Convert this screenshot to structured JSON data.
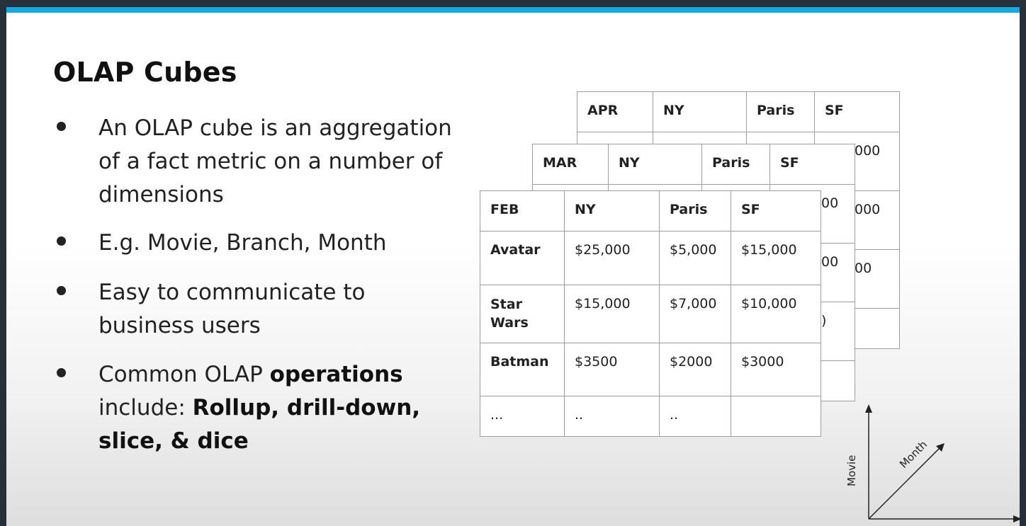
{
  "title": "OLAP Cubes",
  "bullets": [
    {
      "text_lines": [
        "An OLAP cube is an aggregation",
        "of a fact metric on a number of",
        "dimensions"
      ]
    },
    {
      "text_lines": [
        "E.g. Movie, Branch, Month"
      ]
    },
    {
      "text_lines": [
        "Easy to communicate to",
        "business users"
      ]
    },
    {
      "line1_plain": "Common OLAP ",
      "line1_bold": "operations",
      "line2_plain": "include: ",
      "line2_bold": "Rollup, drill-down,",
      "line3_bold": "slice, & dice"
    }
  ],
  "tables": {
    "apr": {
      "header": [
        "APR",
        "NY",
        "Paris",
        "SF"
      ],
      "visible_cells": [
        "000",
        "000",
        "00"
      ]
    },
    "mar": {
      "header": [
        "MAR",
        "NY",
        "Paris",
        "SF"
      ],
      "visible_cells": [
        "00",
        "00",
        ")"
      ]
    },
    "feb": {
      "header": [
        "FEB",
        "NY",
        "Paris",
        "SF"
      ],
      "rows": [
        [
          "Avatar",
          "$25,000",
          "$5,000",
          "$15,000"
        ],
        [
          "Star Wars",
          "$15,000",
          "$7,000",
          "$10,000"
        ],
        [
          "Batman",
          "$3500",
          "$2000",
          "$3000"
        ],
        [
          "...",
          "..",
          "..",
          ""
        ]
      ]
    }
  },
  "axes": {
    "vertical": "Movie",
    "diagonal": "Month"
  }
}
